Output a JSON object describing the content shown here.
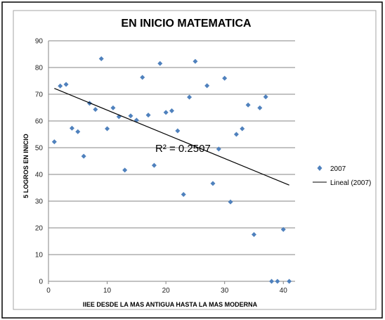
{
  "chart_data": {
    "type": "scatter",
    "title": "EN INICIO MATEMATICA",
    "xlabel": "IIEE DESDE LA MAS ANTIGUA HASTA LA MAS MODERNA",
    "ylabel": "5 LOGROS EN INICIO",
    "xlim": [
      0,
      42
    ],
    "ylim": [
      0,
      90
    ],
    "x_ticks": [
      "0",
      "10",
      "20",
      "30",
      "40"
    ],
    "y_ticks": [
      "0",
      "10",
      "20",
      "30",
      "40",
      "50",
      "60",
      "70",
      "80",
      "90"
    ],
    "grid": "horizontal",
    "legend_position": "right",
    "series": [
      {
        "name": "2007",
        "color": "#4f81bd",
        "marker": "diamond",
        "points": [
          [
            1,
            52.2
          ],
          [
            2,
            73.1
          ],
          [
            3,
            73.7
          ],
          [
            4,
            57.3
          ],
          [
            5,
            56.0
          ],
          [
            6,
            46.8
          ],
          [
            7,
            66.6
          ],
          [
            8,
            64.3
          ],
          [
            9,
            83.3
          ],
          [
            10,
            57.1
          ],
          [
            11,
            64.9
          ],
          [
            12,
            61.6
          ],
          [
            13,
            41.6
          ],
          [
            14,
            61.9
          ],
          [
            15,
            60.3
          ],
          [
            16,
            76.3
          ],
          [
            17,
            62.2
          ],
          [
            18,
            43.4
          ],
          [
            19,
            81.5
          ],
          [
            20,
            63.2
          ],
          [
            21,
            63.8
          ],
          [
            22,
            56.3
          ],
          [
            23,
            32.5
          ],
          [
            24,
            68.9
          ],
          [
            25,
            82.3
          ],
          [
            27,
            73.2
          ],
          [
            28,
            36.6
          ],
          [
            29,
            49.5
          ],
          [
            30,
            76.0
          ],
          [
            31,
            29.7
          ],
          [
            32,
            55.0
          ],
          [
            33,
            57.1
          ],
          [
            34,
            66.0
          ],
          [
            35,
            17.5
          ],
          [
            36,
            64.9
          ],
          [
            37,
            69.0
          ],
          [
            38,
            0
          ],
          [
            39,
            0
          ],
          [
            40,
            19.4
          ],
          [
            41,
            0
          ]
        ]
      }
    ],
    "trendline": {
      "name": "Lineal (2007)",
      "color": "#000000",
      "x": [
        1,
        41
      ],
      "y": [
        72.2,
        36.0
      ],
      "annotation": "R² = 0.2507"
    }
  }
}
